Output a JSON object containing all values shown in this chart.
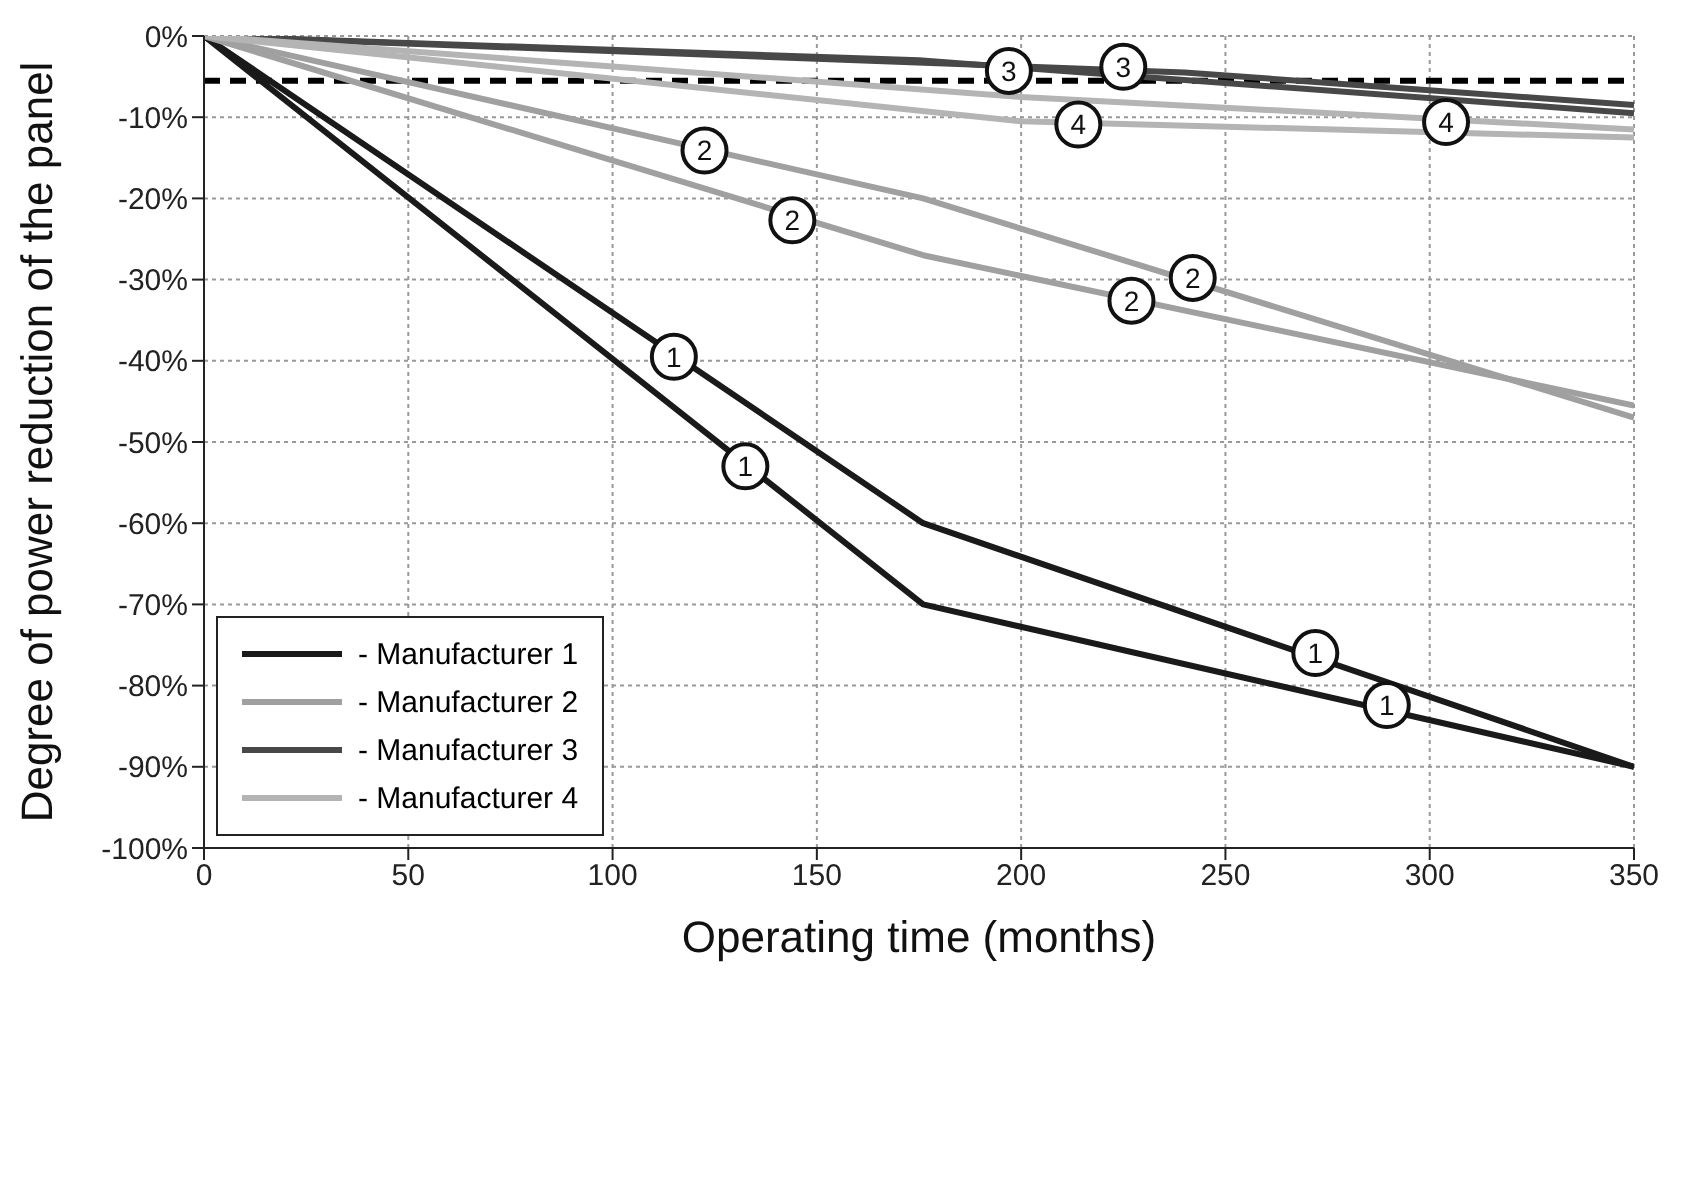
{
  "chart_data": {
    "type": "line",
    "xlabel": "Operating time (months)",
    "ylabel": "Degree of power reduction of the panel",
    "xlim": [
      0,
      350
    ],
    "xticks": [
      0,
      50,
      100,
      150,
      200,
      250,
      300,
      350
    ],
    "ylim": [
      -100,
      0
    ],
    "yticks": [
      {
        "value": 0,
        "label": "0%"
      },
      {
        "value": -10,
        "label": "-10%"
      },
      {
        "value": -20,
        "label": "-20%"
      },
      {
        "value": -30,
        "label": "-30%"
      },
      {
        "value": -40,
        "label": "-40%"
      },
      {
        "value": -50,
        "label": "-50%"
      },
      {
        "value": -60,
        "label": "-60%"
      },
      {
        "value": -70,
        "label": "-70%"
      },
      {
        "value": -80,
        "label": "-80%"
      },
      {
        "value": -90,
        "label": "-90%"
      },
      {
        "value": -100,
        "label": "-100%"
      }
    ],
    "grid": true,
    "legend": "left",
    "marker": "none",
    "line_style": "solid",
    "series": [
      {
        "name": "- Manufacturer 1",
        "color": "#1a1a1a",
        "x": [
          0,
          176,
          350
        ],
        "values": [
          0,
          -60,
          -90
        ]
      },
      {
        "color": "#1a1a1a",
        "x": [
          0,
          176,
          350
        ],
        "values": [
          0,
          -70,
          -90
        ]
      },
      {
        "name": "- Manufacturer 2",
        "color": "#a0a0a0",
        "x": [
          0,
          176,
          350
        ],
        "values": [
          0,
          -20,
          -47
        ]
      },
      {
        "color": "#a0a0a0",
        "x": [
          0,
          176,
          350
        ],
        "values": [
          0,
          -27,
          -45.5
        ]
      },
      {
        "name": "- Manufacturer 3",
        "color": "#484848",
        "x": [
          0,
          240,
          350
        ],
        "values": [
          0,
          -4.5,
          -8.5
        ]
      },
      {
        "color": "#484848",
        "x": [
          0,
          175,
          350
        ],
        "values": [
          0,
          -3,
          -9.5
        ]
      },
      {
        "name": "- Manufacturer 4",
        "color": "#b4b4b4",
        "x": [
          0,
          200,
          350
        ],
        "values": [
          0,
          -10.5,
          -12.5
        ]
      },
      {
        "color": "#b4b4b4",
        "x": [
          0,
          200,
          350
        ],
        "values": [
          0,
          -7.5,
          -11.5
        ]
      }
    ],
    "ref_lines": [
      {
        "axis": "y",
        "value": -5.5,
        "color": "#000000",
        "line_style": "dashed"
      }
    ],
    "annotations": [
      {
        "text": "1",
        "x": 115,
        "y": -39.5
      },
      {
        "text": "1",
        "x": 132.5,
        "y": -53
      },
      {
        "text": "1",
        "x": 272,
        "y": -76
      },
      {
        "text": "1",
        "x": 289.5,
        "y": -82.4
      },
      {
        "text": "2",
        "x": 122.5,
        "y": -14.1
      },
      {
        "text": "2",
        "x": 144,
        "y": -22.7
      },
      {
        "text": "2",
        "x": 242,
        "y": -29.8
      },
      {
        "text": "2",
        "x": 227,
        "y": -32.6
      },
      {
        "text": "3",
        "x": 197,
        "y": -4.3
      },
      {
        "text": "3",
        "x": 225,
        "y": -3.8
      },
      {
        "text": "4",
        "x": 214,
        "y": -10.9
      },
      {
        "text": "4",
        "x": 304,
        "y": -10.6
      }
    ]
  }
}
